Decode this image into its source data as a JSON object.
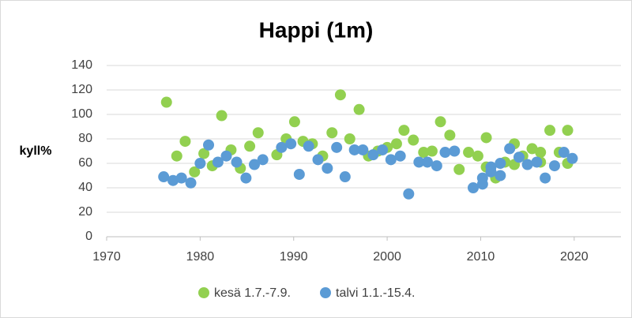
{
  "chart_data": {
    "type": "scatter",
    "title": "Happi (1m)",
    "y_label": "kyll%",
    "xlim": [
      1970,
      2025
    ],
    "xticks": [
      1970,
      1980,
      1990,
      2000,
      2010,
      2020
    ],
    "ylim": [
      0,
      140
    ],
    "yticks": [
      0,
      20,
      40,
      60,
      80,
      100,
      120,
      140
    ],
    "grid": true,
    "legend": "bottom",
    "series": [
      {
        "name": "kesä 1.7.-7.9.",
        "color": "#92d050",
        "x": [
          1976.4,
          1977.5,
          1978.4,
          1979.4,
          1980.4,
          1981.3,
          1982.3,
          1983.3,
          1984.3,
          1985.3,
          1986.2,
          1988.2,
          1989.2,
          1990.1,
          1991.0,
          1992.0,
          1993.1,
          1994.1,
          1995.0,
          1996.0,
          1997.0,
          1998.0,
          1999.0,
          2000.0,
          2001.0,
          2001.8,
          2002.8,
          2003.9,
          2004.8,
          2005.7,
          2006.7,
          2007.7,
          2008.7,
          2009.7,
          2010.6,
          2010.6,
          2011.6,
          2012.6,
          2013.6,
          2013.6,
          2014.5,
          2015.5,
          2016.4,
          2016.4,
          2017.4,
          2018.4,
          2019.3,
          2019.3
        ],
        "values": [
          110,
          66,
          78,
          53,
          68,
          58,
          99,
          71,
          56,
          74,
          85,
          67,
          80,
          94,
          78,
          76,
          66,
          85,
          116,
          80,
          104,
          66,
          70,
          73,
          76,
          87,
          79,
          69,
          70,
          94,
          83,
          55,
          69,
          66,
          81,
          57,
          48,
          61,
          76,
          59,
          66,
          72,
          69,
          61,
          87,
          69,
          87,
          60
        ]
      },
      {
        "name": "talvi 1.1.-15.4.",
        "color": "#5b9bd5",
        "x": [
          1976.1,
          1977.1,
          1978.0,
          1979.0,
          1980.0,
          1980.9,
          1981.9,
          1982.8,
          1983.9,
          1984.9,
          1985.8,
          1986.7,
          1988.7,
          1989.7,
          1990.6,
          1991.6,
          1992.6,
          1993.6,
          1994.6,
          1995.5,
          1996.5,
          1997.4,
          1998.5,
          1999.5,
          2000.4,
          2001.4,
          2002.3,
          2003.4,
          2004.3,
          2005.3,
          2006.2,
          2007.2,
          2009.2,
          2010.2,
          2010.2,
          2011.1,
          2011.1,
          2012.1,
          2012.1,
          2013.1,
          2014.1,
          2015.0,
          2016.0,
          2016.9,
          2017.9,
          2018.9,
          2019.8
        ],
        "values": [
          49,
          46,
          48,
          44,
          60,
          75,
          61,
          66,
          61,
          48,
          59,
          63,
          73,
          76,
          51,
          74,
          63,
          56,
          73,
          49,
          71,
          71,
          67,
          71,
          63,
          66,
          35,
          61,
          61,
          58,
          69,
          70,
          40,
          43,
          48,
          57,
          53,
          60,
          50,
          72,
          65,
          59,
          61,
          48,
          58,
          69,
          64
        ]
      }
    ]
  }
}
